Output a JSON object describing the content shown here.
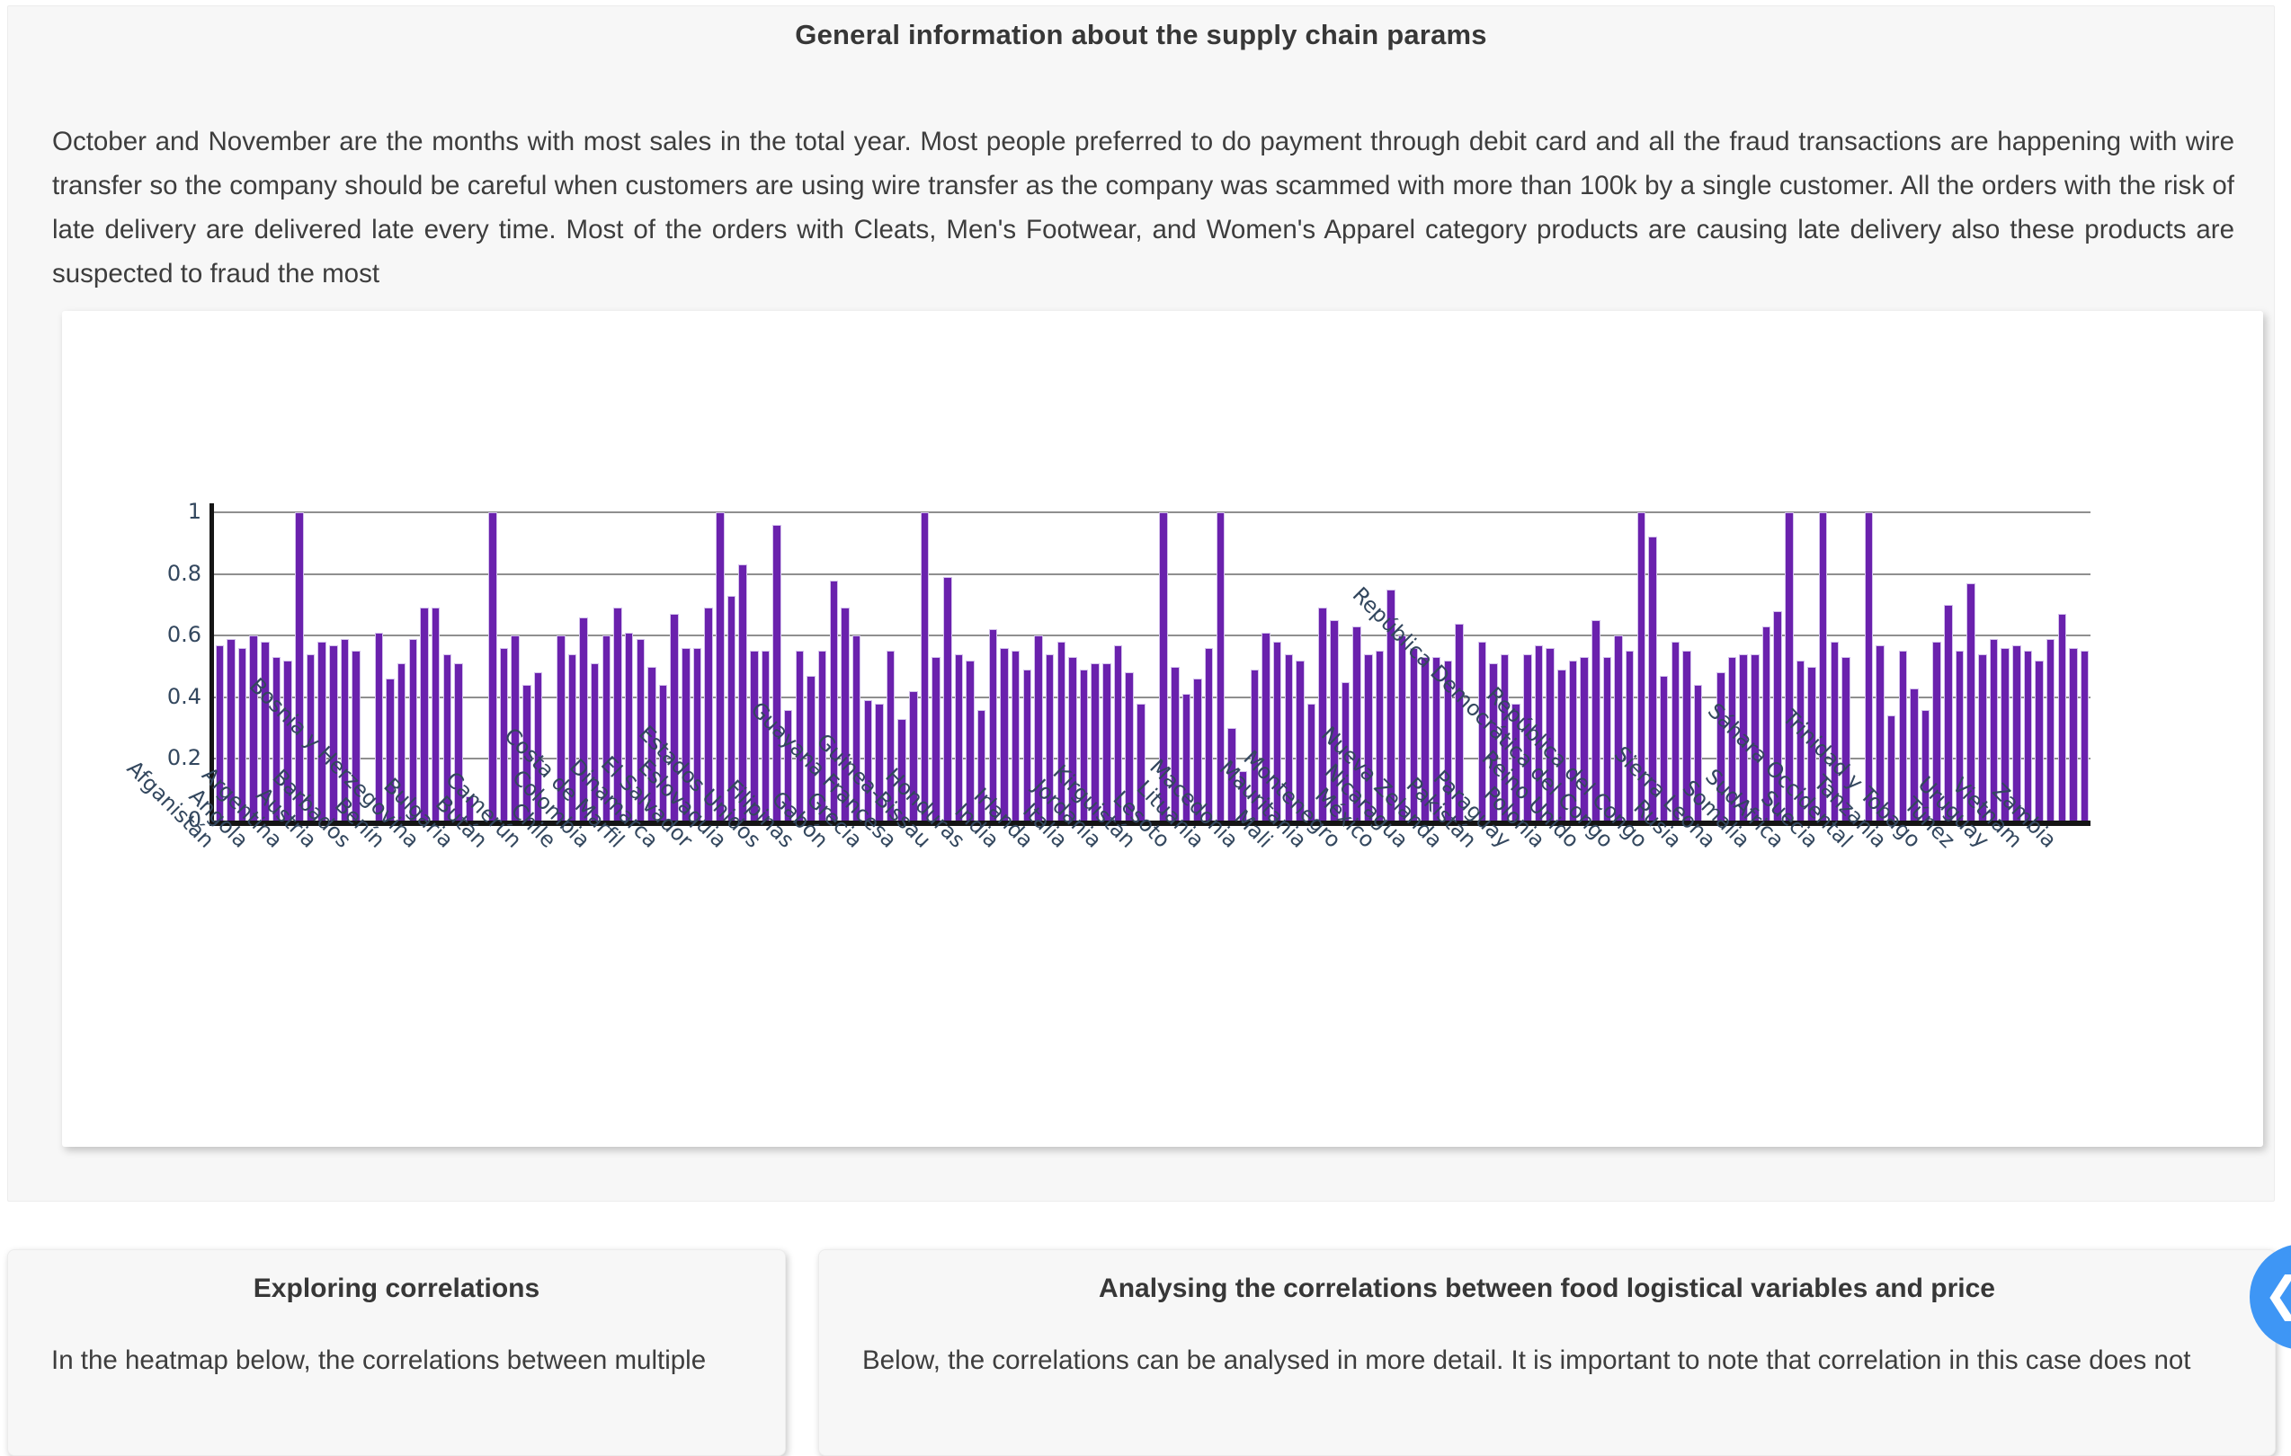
{
  "page": {
    "title": "General information about the supply chain params",
    "description": "October and November are the months with most sales in the total year. Most people preferred to do payment through debit card and all the fraud transactions are happening with wire transfer so the company should be careful when customers are using wire transfer as the company was scammed with more than 100k by a single customer. All the orders with the risk of late delivery are delivered late every time. Most of the orders with Cleats, Men's Footwear, and Women's Apparel category products are causing late delivery also these products are suspected to fraud the most"
  },
  "chart_data": {
    "type": "bar",
    "title": "",
    "xlabel": "",
    "ylabel": "",
    "ylim": [
      0,
      1.05
    ],
    "yticks": [
      0,
      0.2,
      0.4,
      0.6,
      0.8,
      1
    ],
    "ytick_labels": [
      "0",
      "0.2",
      "0.4",
      "0.6",
      "0.8",
      "1"
    ],
    "grid": "horizontal",
    "legend": "none",
    "bar_color": "#6a21ad",
    "bar_edge_color": "#d3c2ec",
    "axis_color": "#151515",
    "tick_label_color": "#33475e",
    "label_every_n_bars": 3,
    "tick_labels": [
      "Afganistán",
      "Angola",
      "Argentina",
      "Austria",
      "Barbados",
      "Benín",
      "Bosnia y Herzegovina",
      "Bulgaria",
      "Bután",
      "Camerún",
      "Chile",
      "Colombia",
      "Costa de Marfil",
      "Dinamarca",
      "El Salvador",
      "Eslovaquia",
      "Estados Unidos",
      "Filipinas",
      "Gabón",
      "Grecia",
      "Guayana Francesa",
      "Guinea-Bissau",
      "Honduras",
      "India",
      "Irlanda",
      "Italia",
      "Jordania",
      "Kirguistán",
      "Lesoto",
      "Lituania",
      "Macedonia",
      "Mali",
      "Mauritania",
      "Montenegro",
      "México",
      "Nicaragua",
      "Nueva Zelanda",
      "Pakistán",
      "Paraguay",
      "Polonia",
      "Reino Unido",
      "República Democrática del Congo",
      "República del Congo",
      "Rusia",
      "Sierra Leona",
      "Somalia",
      "SudAfrica",
      "Suecia",
      "Sáhara Occidental",
      "Tanzania",
      "Trinidad y Tobago",
      "Túnez",
      "Uruguay",
      "Vietnam",
      "Zambia"
    ],
    "values": [
      0.57,
      0.59,
      0.56,
      0.6,
      0.58,
      0.53,
      0.52,
      1.0,
      0.54,
      0.58,
      0.57,
      0.59,
      0.55,
      0,
      0.61,
      0.46,
      0.51,
      0.59,
      0.69,
      0.69,
      0.54,
      0.51,
      0.08,
      0,
      1.0,
      0.56,
      0.6,
      0.44,
      0.48,
      0,
      0.6,
      0.54,
      0.66,
      0.51,
      0.6,
      0.69,
      0.61,
      0.59,
      0.5,
      0.44,
      0.67,
      0.56,
      0.56,
      0.69,
      1.0,
      0.73,
      0.83,
      0.55,
      0.55,
      0.96,
      0.36,
      0.55,
      0.47,
      0.55,
      0.78,
      0.69,
      0.6,
      0.39,
      0.38,
      0.55,
      0.33,
      0.42,
      1.0,
      0.53,
      0.79,
      0.54,
      0.52,
      0.36,
      0.62,
      0.56,
      0.55,
      0.49,
      0.6,
      0.54,
      0.58,
      0.53,
      0.49,
      0.51,
      0.51,
      0.57,
      0.48,
      0.38,
      0,
      1.0,
      0.5,
      0.41,
      0.46,
      0.56,
      1.0,
      0.3,
      0.16,
      0.49,
      0.61,
      0.58,
      0.54,
      0.52,
      0.38,
      0.69,
      0.65,
      0.45,
      0.63,
      0.54,
      0.55,
      0.75,
      0.6,
      0.56,
      0.53,
      0.53,
      0.52,
      0.64,
      0,
      0.58,
      0.51,
      0.54,
      0.38,
      0.54,
      0.57,
      0.56,
      0.49,
      0.52,
      0.53,
      0.65,
      0.53,
      0.6,
      0.55,
      1.0,
      0.92,
      0.47,
      0.58,
      0.55,
      0.44,
      0,
      0.48,
      0.53,
      0.54,
      0.54,
      0.63,
      0.68,
      1.0,
      0.52,
      0.5,
      1.0,
      0.58,
      0.53,
      0,
      1.0,
      0.57,
      0.34,
      0.55,
      0.43,
      0.36,
      0.58,
      0.7,
      0.55,
      0.77,
      0.54,
      0.59,
      0.56,
      0.57,
      0.55,
      0.52,
      0.59,
      0.67,
      0.56,
      0.55
    ]
  },
  "cards": {
    "left": {
      "title": "Exploring correlations",
      "text": "In the heatmap below, the correlations between multiple"
    },
    "right": {
      "title": "Analysing the correlations between food logistical variables and price",
      "text": "Below, the correlations can be analysed in more detail. It is important to note that correlation in this case does not"
    }
  },
  "nav_button": {
    "icon": "chevron-left",
    "glyph": "❮",
    "color": "#3e96f5"
  }
}
